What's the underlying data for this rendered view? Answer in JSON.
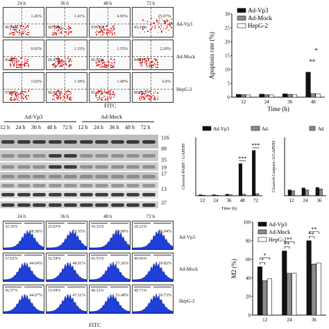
{
  "panelA": {
    "time_labels": [
      "24 h",
      "36 h",
      "48 h",
      "72 h"
    ],
    "row_labels": [
      "Ad-Vp3",
      "Ad-Mock",
      "HepG-2"
    ],
    "xlabel": "FITC",
    "cells": [
      [
        {
          "ll": "96.28%",
          "ur": "1.26%"
        },
        {
          "ll": "96.75%",
          "ur": "1.41%"
        },
        {
          "ll": "93.67%",
          "ur": "4.95%"
        },
        {
          "ll": "43.24%",
          "ur": "25.97%"
        }
      ],
      [
        {
          "ll": "95.86%",
          "ur": "0.92%"
        },
        {
          "ll": "96.47%",
          "ur": "1.33%"
        },
        {
          "ll": "96.00%",
          "ur": "1.55%"
        },
        {
          "ll": "84.24%",
          "ur": "2.20%"
        }
      ],
      [
        {
          "ll": "97.18%",
          "ur": "1.02%"
        },
        {
          "ll": "96.60%",
          "ur": "1.18%"
        },
        {
          "ll": "97.17%",
          "ur": "1.40%"
        },
        {
          "ll": "86.79%",
          "ur": "6.6%"
        }
      ]
    ]
  },
  "panelB": {
    "group_labels": [
      "Ad-Vp3",
      "Ad-Mock"
    ],
    "lane_labels": [
      "12 h",
      "24 h",
      "36 h",
      "48 h",
      "72 h",
      "12 h",
      "24 h",
      "36 h",
      "48 h",
      "72 h"
    ],
    "kda_labels": [
      "116",
      "89",
      "35",
      "19",
      "17",
      "13",
      "37"
    ]
  },
  "panelC": {
    "time_labels": [
      "24 h",
      "36 h",
      "48 h",
      "72 h"
    ],
    "row_labels": [
      "Ad-Vp3",
      "Ad-Mock",
      "HepG-2"
    ],
    "xlabel": "FITC",
    "cells": [
      [
        {
          "l": "32.16%",
          "r": "68.36%"
        },
        {
          "l": "23.03%",
          "r": "76.55%"
        },
        {
          "l": "10.32%",
          "r": "89.89%"
        },
        {
          "l": "20.21%",
          "r": "80.04%"
        }
      ],
      [
        {
          "l": "57.62%",
          "r": "44.64%"
        },
        {
          "l": "52.54%",
          "r": "48.01%"
        },
        {
          "l": "43.53%",
          "r": "57.26%"
        },
        {
          "l": "40.66%",
          "r": "59.82%"
        }
      ],
      [
        {
          "l": "56.57%",
          "r": "44.07%"
        },
        {
          "l": "53.04%",
          "r": "47.51%"
        },
        {
          "l": "49.12%",
          "r": "51.48%"
        },
        {
          "l": "40.71%",
          "r": "59.73%"
        }
      ]
    ]
  },
  "chart_data": [
    {
      "type": "bar",
      "ylabel": "Apoptosis rate (%)",
      "xlabel": "Time (h)",
      "categories": [
        "12",
        "24",
        "36",
        "48"
      ],
      "ylim": [
        0,
        30
      ],
      "yticks": [
        "0",
        "5",
        "10",
        "15",
        "20",
        "25",
        "30"
      ],
      "series": [
        {
          "name": "Ad-Vp3",
          "values": [
            1.0,
            1.1,
            1.2,
            9.0
          ],
          "color": "#111111"
        },
        {
          "name": "Ad-Mock",
          "values": [
            0.9,
            0.9,
            1.0,
            1.3
          ],
          "color": "#8c8c8c"
        },
        {
          "name": "HepG-2",
          "values": [
            0.8,
            0.8,
            0.9,
            1.2
          ],
          "color": "#ffffff"
        }
      ],
      "annotations": [
        "**",
        "*"
      ]
    },
    {
      "type": "bar",
      "ylabel": "Cleaved-PARP / GAPDH",
      "xlabel": "Time (h)",
      "categories": [
        "12",
        "24",
        "36",
        "48",
        "72"
      ],
      "ylim": [
        0,
        1.2
      ],
      "series": [
        {
          "name": "Ad-Vp3",
          "values": [
            0.02,
            0.02,
            0.03,
            0.66,
            0.93
          ],
          "color": "#111111"
        },
        {
          "name": "Ad-Mock",
          "values": [
            0.01,
            0.01,
            0.02,
            0.03,
            0.04
          ],
          "color": "#8c8c8c"
        }
      ],
      "annotations": [
        "***",
        "***"
      ]
    },
    {
      "type": "bar",
      "ylabel": "Cleaved-Caspase-3/GAPDH",
      "xlabel": "",
      "categories": [
        "12",
        "24",
        "36"
      ],
      "ylim": [
        0,
        1.2
      ],
      "series": [
        {
          "name": "Ad-Vp3",
          "values": [
            0.12,
            0.16,
            0.17
          ],
          "color": "#111111"
        },
        {
          "name": "Ad-Mock",
          "values": [
            0.1,
            0.12,
            0.14
          ],
          "color": "#8c8c8c"
        }
      ],
      "legend_text": "Ad"
    },
    {
      "type": "bar",
      "ylabel": "M2 (%)",
      "xlabel": "",
      "categories": [
        "12",
        "24",
        "36"
      ],
      "ylim": [
        0,
        100
      ],
      "yticks": [
        "0",
        "20",
        "40",
        "60",
        "80",
        "100"
      ],
      "series": [
        {
          "name": "Ad-Vp3",
          "values": [
            52,
            69,
            80
          ],
          "color": "#111111"
        },
        {
          "name": "Ad-Mock",
          "values": [
            37,
            45,
            55
          ],
          "color": "#8c8c8c"
        },
        {
          "name": "HepG-2",
          "values": [
            39,
            45,
            56
          ],
          "color": "#ffffff"
        }
      ],
      "annotations": [
        "*",
        "*",
        "**",
        "**",
        "**",
        "**"
      ]
    }
  ]
}
